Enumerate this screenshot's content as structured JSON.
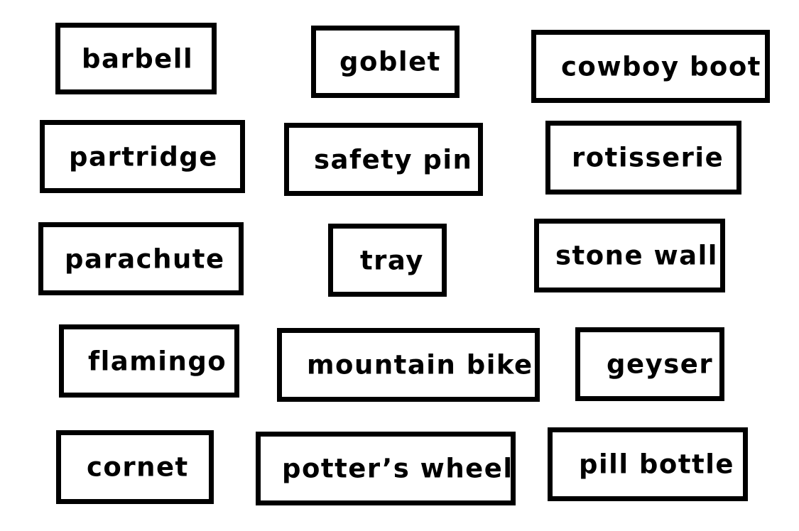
{
  "labels": [
    "barbell",
    "goblet",
    "cowboy boot",
    "partridge",
    "safety pin",
    "rotisserie",
    "parachute",
    "tray",
    "stone wall",
    "flamingo",
    "mountain bike",
    "geyser",
    "cornet",
    "potter’s wheel",
    "pill bottle"
  ],
  "colors": {
    "border": "#000000",
    "text": "#000000",
    "background": "#ffffff"
  }
}
